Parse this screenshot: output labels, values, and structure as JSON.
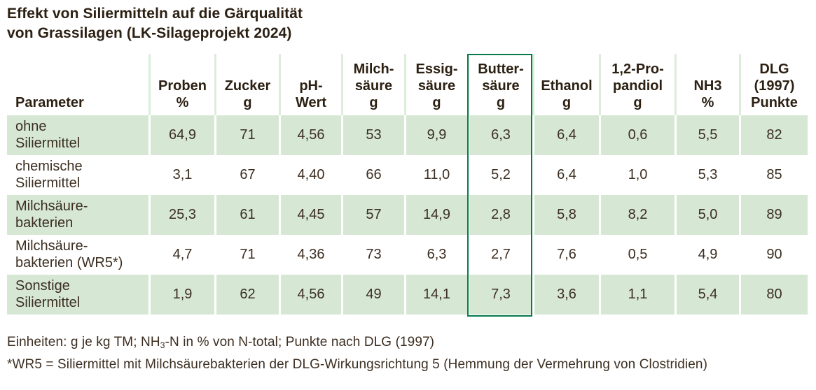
{
  "colors": {
    "row_shade": "#d6e8d4",
    "header_divider": "#dcedda",
    "cell_divider": "#ffffff",
    "highlight_border": "#077a4e",
    "title_text": "#2c2013",
    "body_text": "#3c2e21"
  },
  "title": {
    "lines": [
      "Effekt von Siliermitteln auf die Gärqualität",
      "von Grassilagen (LK-Silageprojekt 2024)"
    ]
  },
  "table": {
    "columns": [
      {
        "lines": [
          "Parameter"
        ]
      },
      {
        "lines": [
          "Proben",
          "%"
        ]
      },
      {
        "lines": [
          "Zucker",
          "g"
        ]
      },
      {
        "lines": [
          "pH-",
          "Wert"
        ]
      },
      {
        "lines": [
          "Milch-",
          "säure",
          "g"
        ]
      },
      {
        "lines": [
          "Essig-",
          "säure",
          "g"
        ]
      },
      {
        "lines": [
          "Butter-",
          "säure",
          "g"
        ]
      },
      {
        "lines": [
          "Ethanol",
          "g"
        ]
      },
      {
        "lines": [
          "1,2-Pro-",
          "pandiol",
          "g"
        ]
      },
      {
        "lines": [
          "NH3",
          "%"
        ]
      },
      {
        "lines": [
          "DLG",
          "(1997)",
          "Punkte"
        ]
      }
    ],
    "rows": [
      {
        "label_lines": [
          "ohne",
          "Siliermittel"
        ],
        "shaded": true,
        "values": [
          "64,9",
          "71",
          "4,56",
          "53",
          "9,9",
          "6,3",
          "6,4",
          "0,6",
          "5,5",
          "82"
        ]
      },
      {
        "label_lines": [
          "chemische",
          "Siliermittel"
        ],
        "shaded": false,
        "values": [
          "3,1",
          "67",
          "4,40",
          "66",
          "11,0",
          "5,2",
          "6,4",
          "1,0",
          "5,3",
          "85"
        ]
      },
      {
        "label_lines": [
          "Milchsäure-",
          "bakterien"
        ],
        "shaded": true,
        "values": [
          "25,3",
          "61",
          "4,45",
          "57",
          "14,9",
          "2,8",
          "5,8",
          "8,2",
          "5,0",
          "89"
        ]
      },
      {
        "label_lines": [
          "Milchsäure-",
          "bakterien (WR5*)"
        ],
        "shaded": false,
        "values": [
          "4,7",
          "71",
          "4,36",
          "73",
          "6,3",
          "2,7",
          "7,6",
          "0,5",
          "4,9",
          "90"
        ]
      },
      {
        "label_lines": [
          "Sonstige",
          "Siliermittel"
        ],
        "shaded": true,
        "values": [
          "1,9",
          "62",
          "4,56",
          "49",
          "14,1",
          "7,3",
          "3,6",
          "1,1",
          "5,4",
          "80"
        ]
      }
    ]
  },
  "highlight": {
    "column_label": "Buttersäure g"
  },
  "footnotes": {
    "units": {
      "pre": "Einheiten: g je kg TM; NH",
      "sub": "3",
      "post": "-N in % von N-total; Punkte nach DLG (1997)"
    },
    "wr5": "*WR5 = Siliermittel mit Milchsäurebakterien der DLG-Wirkungsrichtung 5 (Hemmung der Vermehrung von Clostridien)"
  },
  "chart_data": {
    "type": "table",
    "title": "Effekt von Siliermitteln auf die Gärqualität von Grassilagen (LK-Silageprojekt 2024)",
    "columns": [
      "Parameter",
      "Proben %",
      "Zucker g",
      "pH-Wert",
      "Milchsäure g",
      "Essigsäure g",
      "Buttersäure g",
      "Ethanol g",
      "1,2-Propandiol g",
      "NH3 %",
      "DLG (1997) Punkte"
    ],
    "rows": [
      [
        "ohne Siliermittel",
        64.9,
        71,
        4.56,
        53,
        9.9,
        6.3,
        6.4,
        0.6,
        5.5,
        82
      ],
      [
        "chemische Siliermittel",
        3.1,
        67,
        4.4,
        66,
        11.0,
        5.2,
        6.4,
        1.0,
        5.3,
        85
      ],
      [
        "Milchsäurebakterien",
        25.3,
        61,
        4.45,
        57,
        14.9,
        2.8,
        5.8,
        8.2,
        5.0,
        89
      ],
      [
        "Milchsäurebakterien (WR5*)",
        4.7,
        71,
        4.36,
        73,
        6.3,
        2.7,
        7.6,
        0.5,
        4.9,
        90
      ],
      [
        "Sonstige Siliermittel",
        1.9,
        62,
        4.56,
        49,
        14.1,
        7.3,
        3.6,
        1.1,
        5.4,
        80
      ]
    ],
    "highlighted_column": "Buttersäure g",
    "shaded_row_indices": [
      0,
      2,
      4
    ],
    "notes": [
      "Einheiten: g je kg TM; NH3-N in % von N-total; Punkte nach DLG (1997)",
      "*WR5 = Siliermittel mit Milchsäurebakterien der DLG-Wirkungsrichtung 5 (Hemmung der Vermehrung von Clostridien)"
    ]
  }
}
